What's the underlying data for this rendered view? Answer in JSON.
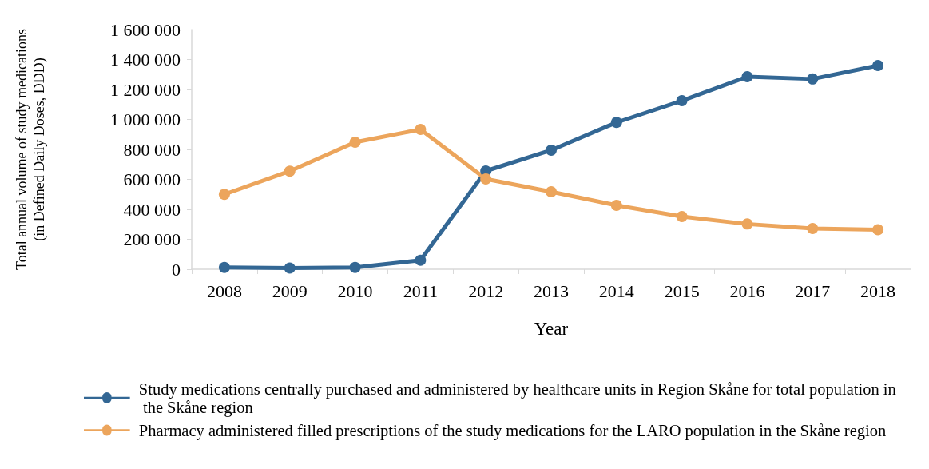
{
  "chart_data": {
    "type": "line",
    "xlabel": "Year",
    "ylabel": "Total annual volume of study medications\n(in Defined Daily Doses, DDD)",
    "categories": [
      "2008",
      "2009",
      "2010",
      "2011",
      "2012",
      "2013",
      "2014",
      "2015",
      "2016",
      "2017",
      "2018"
    ],
    "series": [
      {
        "name": "Study medications centrally purchased and administered by healthcare units in Region Skåne for total population in the Skåne region",
        "color": "#336794",
        "values": [
          12000,
          8000,
          12000,
          60000,
          656000,
          795000,
          980000,
          1125000,
          1285000,
          1270000,
          1360000
        ]
      },
      {
        "name": "Pharmacy administered filled prescriptions of the study medications for the LARO population in the Skåne region",
        "color": "#eca55c",
        "values": [
          500000,
          655000,
          848000,
          933000,
          603000,
          517000,
          427000,
          352000,
          302000,
          272000,
          264000
        ]
      }
    ],
    "ylim": [
      0,
      1600000
    ],
    "yticks": [
      0,
      {
        "value": 200000,
        "label": "200 000"
      },
      {
        "value": 400000,
        "label": "400 000"
      },
      {
        "value": 600000,
        "label": "600 000"
      },
      {
        "value": 800000,
        "label": "800 000"
      },
      {
        "value": 1000000,
        "label": "1 000 000"
      },
      {
        "value": 1200000,
        "label": "1 200 000"
      },
      {
        "value": 1400000,
        "label": "1 400 000"
      },
      {
        "value": 1600000,
        "label": "1 600 000"
      }
    ],
    "grid": false,
    "legend": "bottom",
    "marker": "circle",
    "line_style": "solid"
  }
}
